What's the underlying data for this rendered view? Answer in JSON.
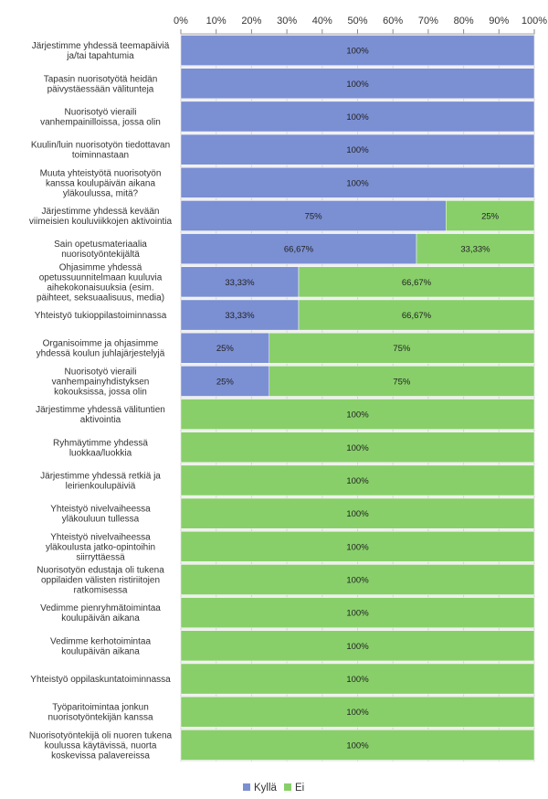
{
  "chart_data": {
    "type": "bar",
    "orientation": "horizontal",
    "stacked": true,
    "title": "",
    "xlabel": "",
    "ylabel": "",
    "xlim": [
      0,
      100
    ],
    "x_ticks": [
      "0%",
      "10%",
      "20%",
      "30%",
      "40%",
      "50%",
      "60%",
      "70%",
      "80%",
      "90%",
      "100%"
    ],
    "grid": true,
    "legend_position": "bottom",
    "categories": [
      [
        "Järjestimme yhdessä teemapäiviä",
        "ja/tai tapahtumia"
      ],
      [
        "Tapasin nuorisotyötä heidän",
        "päivystäessään välitunteja"
      ],
      [
        "Nuorisotyö vieraili",
        "vanhempainilloissa, jossa olin"
      ],
      [
        "Kuulin/luin nuorisotyön tiedottavan",
        "toiminnastaan"
      ],
      [
        "Muuta yhteistyötä nuorisotyön",
        "kanssa koulupäivän aikana",
        "yläkoulussa, mitä?"
      ],
      [
        "Järjestimme yhdessä kevään",
        "viimeisien kouluviikkojen aktivointia"
      ],
      [
        "Sain opetusmateriaalia",
        "nuorisotyöntekijältä"
      ],
      [
        "Ohjasimme yhdessä",
        "opetussuunnitelmaan kuuluvia",
        "aihekokonaisuuksia (esim.",
        "päihteet, seksuaalisuus, media)"
      ],
      [
        "Yhteistyö tukioppilastoiminnassa"
      ],
      [
        "Organisoimme ja ohjasimme",
        "yhdessä koulun juhlajärjestelyjä"
      ],
      [
        "Nuorisotyö vieraili",
        "vanhempainyhdistyksen",
        "kokouksissa, jossa olin"
      ],
      [
        "Järjestimme yhdessä välituntien",
        "aktivointia"
      ],
      [
        "Ryhmäytimme yhdessä",
        "luokkaa/luokkia"
      ],
      [
        "Järjestimme yhdessä retkiä ja",
        "leirienkoulupäiviä"
      ],
      [
        "Yhteistyö nivelvaiheessa",
        "yläkouluun tullessa"
      ],
      [
        "Yhteistyö nivelvaiheessa",
        "yläkoulusta jatko-opintoihin",
        "siirryttäessä"
      ],
      [
        "Nuorisotyön edustaja oli tukena",
        "oppilaiden välisten ristiriitojen",
        "ratkomisessa"
      ],
      [
        "Vedimme pienryhmätoimintaa",
        "koulupäivän aikana"
      ],
      [
        "Vedimme kerhotoimintaa",
        "koulupäivän aikana"
      ],
      [
        "Yhteistyö oppilaskuntatoiminnassa"
      ],
      [
        "Työparitoimintaa jonkun",
        "nuorisotyöntekijän kanssa"
      ],
      [
        "Nuorisotyöntekijä oli nuoren tukena",
        "koulussa käytävissä, nuorta",
        "koskevissa palavereissa"
      ]
    ],
    "series": [
      {
        "name": "Kyllä",
        "color": "#7b8fd3",
        "values": [
          100,
          100,
          100,
          100,
          100,
          75,
          66.67,
          33.33,
          33.33,
          25,
          25,
          0,
          0,
          0,
          0,
          0,
          0,
          0,
          0,
          0,
          0,
          0
        ],
        "labels": [
          "100%",
          "100%",
          "100%",
          "100%",
          "100%",
          "75%",
          "66,67%",
          "33,33%",
          "33,33%",
          "25%",
          "25%",
          "",
          "",
          "",
          "",
          "",
          "",
          "",
          "",
          "",
          "",
          ""
        ]
      },
      {
        "name": "Ei",
        "color": "#88cf6a",
        "values": [
          0,
          0,
          0,
          0,
          0,
          25,
          33.33,
          66.67,
          66.67,
          75,
          75,
          100,
          100,
          100,
          100,
          100,
          100,
          100,
          100,
          100,
          100,
          100
        ],
        "labels": [
          "",
          "",
          "",
          "",
          "",
          "25%",
          "33,33%",
          "66,67%",
          "66,67%",
          "75%",
          "75%",
          "100%",
          "100%",
          "100%",
          "100%",
          "100%",
          "100%",
          "100%",
          "100%",
          "100%",
          "100%",
          "100%"
        ]
      }
    ]
  }
}
